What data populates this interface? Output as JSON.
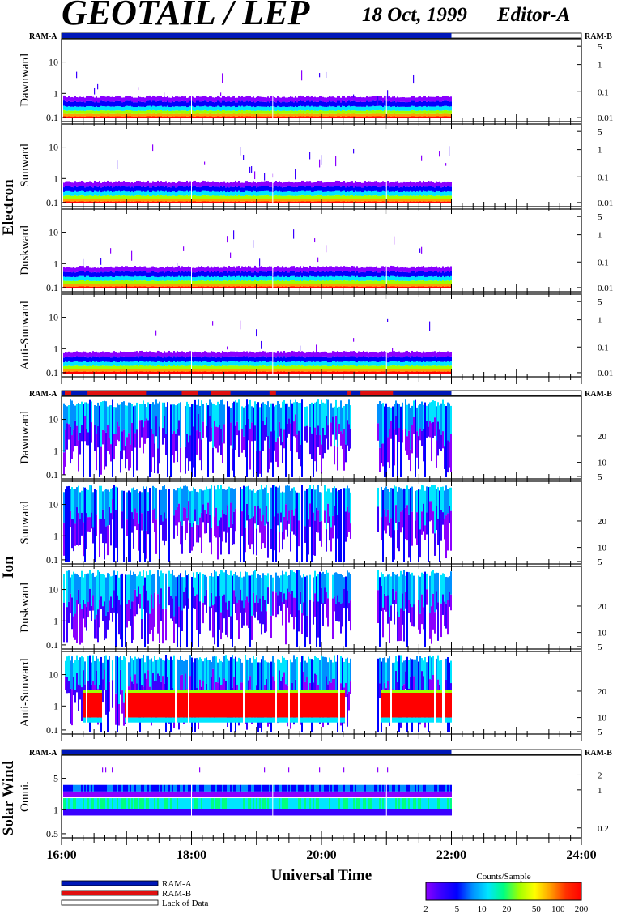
{
  "header": {
    "title": "GEOTAIL / LEP",
    "date": "18 Oct, 1999",
    "editor": "Editor-A"
  },
  "ram_labels": {
    "left": "RAM-A",
    "right": "RAM-B"
  },
  "groups": [
    {
      "name": "Electron",
      "panels": [
        "Dawnward",
        "Sunward",
        "Duskward",
        "Anti-Sunward"
      ]
    },
    {
      "name": "Ion",
      "panels": [
        "Dawnward",
        "Sunward",
        "Duskward",
        "Anti-Sunward"
      ]
    },
    {
      "name": "Solar Wind",
      "panels": [
        "Omni."
      ]
    }
  ],
  "chart_data": {
    "type": "heatmap",
    "xlabel": "Universal Time",
    "x_ticks": [
      "16:00",
      "18:00",
      "20:00",
      "22:00",
      "24:00"
    ],
    "x_range_hours": [
      16,
      24
    ],
    "data_end_hour": 22,
    "electron_panels": {
      "left_ticks": [
        "10",
        "1",
        "0.1"
      ],
      "right_ticks": [
        "5",
        "1",
        "0.1",
        "0.01"
      ]
    },
    "ion_panels": {
      "left_ticks": [
        "10",
        "1",
        "0.1"
      ],
      "right_ticks": [
        "20",
        "10",
        "5"
      ]
    },
    "solar_wind_panel": {
      "left_ticks": [
        "5",
        "1",
        "0.5"
      ],
      "right_ticks": [
        "2",
        "1",
        "0.2"
      ]
    },
    "ion_data_gaps_hours": [
      [
        20.45,
        20.85
      ]
    ],
    "anti_sunward_red_band_hours": [
      [
        16.3,
        16.6
      ],
      [
        16.95,
        20.35
      ],
      [
        20.9,
        22.0
      ]
    ],
    "colorbar": {
      "title": "Counts/Sample",
      "ticks": [
        "2",
        "5",
        "10",
        "20",
        "50",
        "100",
        "200"
      ],
      "colors": [
        "#8b00ff",
        "#3a00ff",
        "#0000ff",
        "#0090ff",
        "#00e5ff",
        "#00ff80",
        "#a0ff00",
        "#ffff00",
        "#ffa000",
        "#ff3000",
        "#ff0000"
      ]
    },
    "legend": [
      {
        "label": "RAM-A",
        "color": "#0018b8"
      },
      {
        "label": "RAM-B",
        "color": "#e01010"
      },
      {
        "label": "Lack of Data",
        "color": "#ffffff"
      }
    ]
  }
}
